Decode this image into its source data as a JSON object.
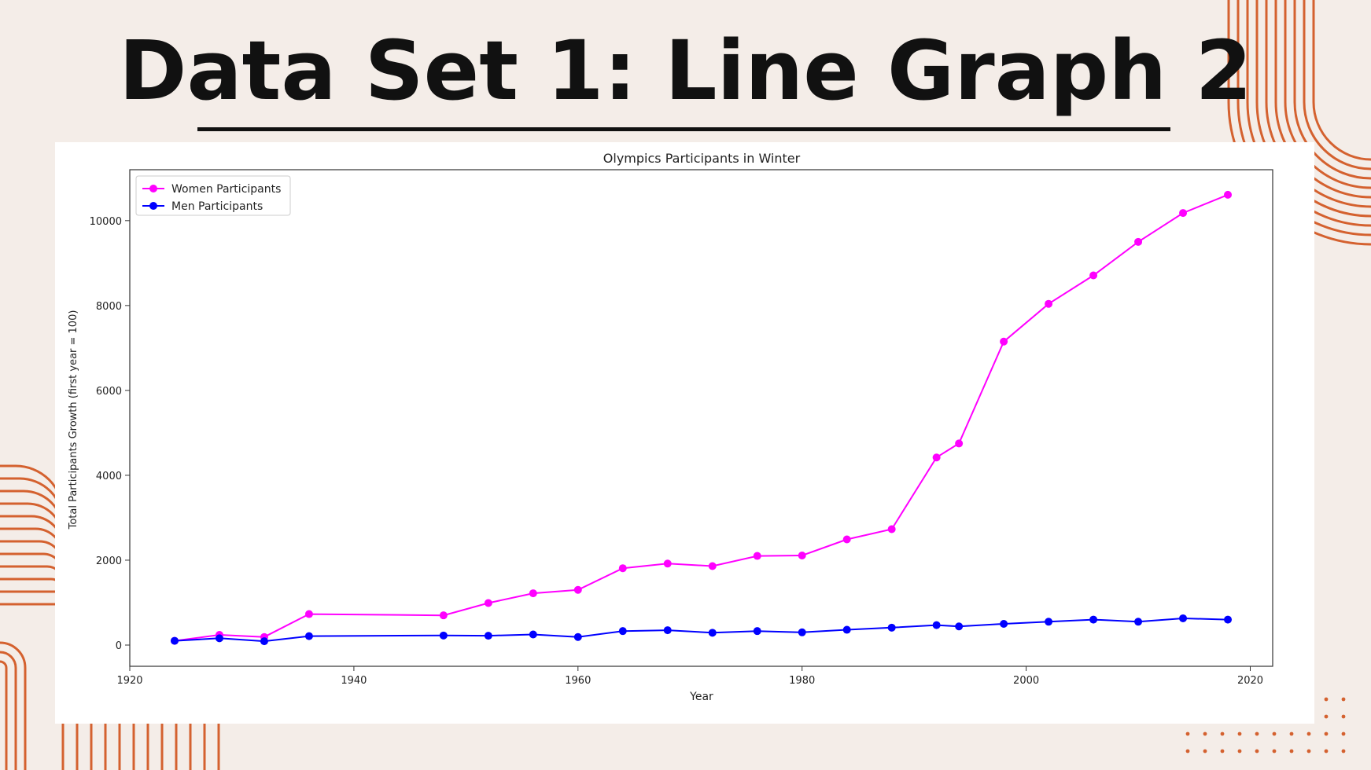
{
  "slide": {
    "title": "Data Set 1: Line Graph 2"
  },
  "colors": {
    "background": "#f4ede8",
    "decoration": "#d4612f",
    "women": "#ff00ff",
    "men": "#0000ff"
  },
  "chart_data": {
    "type": "line",
    "title": "Olympics Participants in Winter",
    "xlabel": "Year",
    "ylabel": "Total Participants Growth (first year = 100)",
    "xlim": [
      1920,
      2022
    ],
    "ylim": [
      -500,
      11200
    ],
    "xticks": [
      1920,
      1940,
      1960,
      1980,
      2000,
      2020
    ],
    "yticks": [
      0,
      2000,
      4000,
      6000,
      8000,
      10000
    ],
    "grid": false,
    "legend_position": "top-left",
    "x": [
      1924,
      1928,
      1932,
      1936,
      1948,
      1952,
      1956,
      1960,
      1964,
      1968,
      1972,
      1976,
      1980,
      1984,
      1988,
      1992,
      1994,
      1998,
      2002,
      2006,
      2010,
      2014,
      2018
    ],
    "series": [
      {
        "name": "Women Participants",
        "color": "#ff00ff",
        "values": [
          100,
          240,
          190,
          730,
          700,
          990,
          1220,
          1300,
          1810,
          1920,
          1860,
          2100,
          2110,
          2490,
          2730,
          4420,
          4750,
          7150,
          8040,
          8710,
          9500,
          10180,
          10610
        ]
      },
      {
        "name": "Men Participants",
        "color": "#0000ff",
        "values": [
          100,
          160,
          90,
          210,
          225,
          220,
          250,
          190,
          330,
          350,
          290,
          330,
          300,
          360,
          410,
          470,
          440,
          500,
          550,
          600,
          550,
          630,
          600
        ]
      }
    ]
  }
}
